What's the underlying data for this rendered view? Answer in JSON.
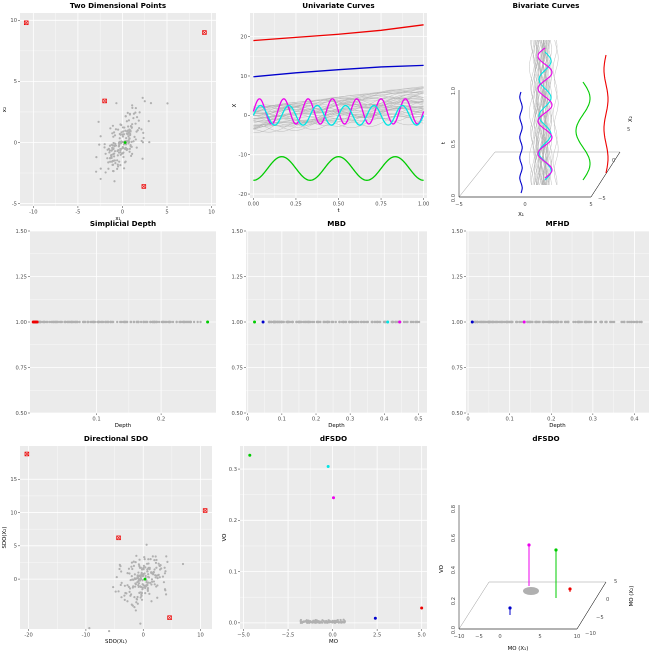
{
  "colors": {
    "panel": "#ebebeb",
    "grid": "#ffffff",
    "gray": "#b0b0b0",
    "red": "#ee0000",
    "blue": "#0000cc",
    "cyan": "#00e5e5",
    "magenta": "#ee00ee",
    "green": "#00cc00"
  },
  "chart_data": [
    {
      "type": "scatter",
      "title": "Two Dimensional Points",
      "xlabel": "x₁",
      "ylabel": "x₂",
      "xlim": [
        -11.5,
        10.5
      ],
      "ylim": [
        -5.2,
        10.6
      ],
      "xticks": [
        -10,
        -5,
        0,
        5,
        10
      ],
      "yticks": [
        -5,
        0,
        5,
        10
      ],
      "highlighted": [
        {
          "x": -10.8,
          "y": 9.8,
          "color": "red",
          "marker": "square-x"
        },
        {
          "x": 9.2,
          "y": 9.0,
          "color": "red",
          "marker": "square-x"
        },
        {
          "x": -2.0,
          "y": 3.4,
          "color": "red",
          "marker": "square-x"
        },
        {
          "x": 2.4,
          "y": -3.6,
          "color": "red",
          "marker": "square-x"
        },
        {
          "x": 0.3,
          "y": 0.0,
          "color": "green",
          "marker": "point"
        }
      ],
      "background_points": {
        "count": 200,
        "color": "gray",
        "center": [
          0,
          0
        ]
      }
    },
    {
      "type": "line",
      "title": "Univariate Curves",
      "xlabel": "t",
      "ylabel": "X",
      "xlim": [
        -0.02,
        1.02
      ],
      "ylim": [
        -21,
        26
      ],
      "xticks": [
        0.0,
        0.25,
        0.5,
        0.75,
        1.0
      ],
      "xtick_labels": [
        "0.00",
        "0.25",
        "0.50",
        "0.75",
        "1.00"
      ],
      "yticks": [
        -20,
        -10,
        0,
        10,
        20
      ],
      "series": [
        {
          "color": "red",
          "x": [
            0,
            0.25,
            0.5,
            0.75,
            1
          ],
          "y": [
            19,
            19.8,
            20.6,
            21.6,
            23
          ]
        },
        {
          "color": "blue",
          "x": [
            0,
            0.25,
            0.5,
            0.75,
            1
          ],
          "y": [
            9.8,
            10.8,
            11.6,
            12.3,
            12.7
          ]
        },
        {
          "color": "magenta",
          "shape": "sine",
          "mean": 1.0,
          "amplitude": 3.2,
          "periods": 7
        },
        {
          "color": "cyan",
          "shape": "sine",
          "mean": 0.0,
          "amplitude": 2.5,
          "periods": 6
        },
        {
          "color": "green",
          "shape": "sine",
          "mean": -13.5,
          "amplitude": 3.0,
          "periods": 3
        }
      ],
      "background_curves": {
        "count": 40,
        "color": "gray",
        "range": [
          -6,
          8
        ]
      }
    },
    {
      "type": "line3d",
      "title": "Bivariate Curves",
      "xlabel": "X₁",
      "ylabel": "X₂",
      "zlabel": "t",
      "xticks": [
        "−5",
        "0",
        "5"
      ],
      "yticks": [
        "−5",
        "0",
        "5"
      ],
      "zticks": [
        "0.0",
        "0.5",
        "1.0"
      ]
    },
    {
      "type": "scatter",
      "title": "Simplicial Depth",
      "xlabel": "Depth",
      "ylabel": "",
      "xlim": [
        -0.003,
        0.285
      ],
      "ylim": [
        0.5,
        1.5
      ],
      "xticks": [
        0.1,
        0.2
      ],
      "yticks": [
        0.5,
        0.75,
        1.0,
        1.25,
        1.5
      ],
      "ytick_labels": [
        "0.50",
        "0.75",
        "1.00",
        "1.25",
        "1.50"
      ],
      "highlighted": [
        {
          "x": 0.002,
          "color": "red"
        },
        {
          "x": 0.004,
          "color": "red"
        },
        {
          "x": 0.006,
          "color": "red"
        },
        {
          "x": 0.008,
          "color": "red"
        },
        {
          "x": 0.272,
          "color": "green"
        }
      ],
      "background_range": [
        0.01,
        0.265
      ]
    },
    {
      "type": "scatter",
      "title": "MBD",
      "xlabel": "Depth",
      "ylabel": "",
      "xlim": [
        -0.005,
        0.525
      ],
      "ylim": [
        0.5,
        1.5
      ],
      "xticks": [
        0.0,
        0.1,
        0.2,
        0.3,
        0.4,
        0.5
      ],
      "yticks": [
        0.5,
        0.75,
        1.0,
        1.25,
        1.5
      ],
      "ytick_labels": [
        "0.50",
        "0.75",
        "1.00",
        "1.25",
        "1.50"
      ],
      "highlighted": [
        {
          "x": 0.02,
          "color": "green"
        },
        {
          "x": 0.045,
          "color": "blue"
        },
        {
          "x": 0.41,
          "color": "cyan"
        },
        {
          "x": 0.445,
          "color": "magenta"
        }
      ],
      "background_range": [
        0.06,
        0.51
      ]
    },
    {
      "type": "scatter",
      "title": "MFHD",
      "xlabel": "Depth",
      "ylabel": "",
      "xlim": [
        -0.005,
        0.435
      ],
      "ylim": [
        0.5,
        1.5
      ],
      "xticks": [
        0.0,
        0.1,
        0.2,
        0.3,
        0.4
      ],
      "yticks": [
        0.5,
        0.75,
        1.0,
        1.25,
        1.5
      ],
      "ytick_labels": [
        "0.50",
        "0.75",
        "1.00",
        "1.25",
        "1.50"
      ],
      "highlighted": [
        {
          "x": 0.01,
          "color": "blue"
        },
        {
          "x": 0.135,
          "color": "magenta"
        }
      ],
      "background_range": [
        0.015,
        0.42
      ]
    },
    {
      "type": "scatter",
      "title": "Directional SDO",
      "xlabel": "SDO(X₁)",
      "ylabel": "SDO(X₂)",
      "xlim": [
        -21.5,
        12
      ],
      "ylim": [
        -7.5,
        20
      ],
      "xticks": [
        -20,
        -10,
        0,
        10
      ],
      "yticks": [
        0,
        5,
        10,
        15
      ],
      "highlighted": [
        {
          "x": -20.3,
          "y": 18.8,
          "color": "red",
          "marker": "square-x"
        },
        {
          "x": 10.8,
          "y": 10.3,
          "color": "red",
          "marker": "square-x"
        },
        {
          "x": -4.3,
          "y": 6.2,
          "color": "red",
          "marker": "square-x"
        },
        {
          "x": 4.6,
          "y": -5.8,
          "color": "red",
          "marker": "square-x"
        },
        {
          "x": 0.3,
          "y": 0.0,
          "color": "green",
          "marker": "point"
        }
      ],
      "background_points": {
        "count": 200,
        "color": "gray",
        "center": [
          0,
          0
        ]
      }
    },
    {
      "type": "scatter",
      "title": "dFSDO",
      "xlabel": "MO",
      "ylabel": "VO",
      "xlim": [
        -5.2,
        5.3
      ],
      "ylim": [
        -0.012,
        0.345
      ],
      "xticks": [
        -5.0,
        -2.5,
        0.0,
        2.5,
        5.0
      ],
      "xtick_labels": [
        "−5.0",
        "−2.5",
        "0.0",
        "2.5",
        "5.0"
      ],
      "yticks": [
        0.0,
        0.1,
        0.2,
        0.3
      ],
      "ytick_labels": [
        "0.0",
        "0.1",
        "0.2",
        "0.3"
      ],
      "highlighted": [
        {
          "x": -4.65,
          "y": 0.327,
          "color": "green"
        },
        {
          "x": -0.25,
          "y": 0.305,
          "color": "cyan"
        },
        {
          "x": 0.05,
          "y": 0.244,
          "color": "magenta"
        },
        {
          "x": 2.4,
          "y": 0.009,
          "color": "blue"
        },
        {
          "x": 5.0,
          "y": 0.029,
          "color": "red"
        }
      ],
      "background_range": [
        -1.8,
        0.7
      ]
    },
    {
      "type": "scatter3d",
      "title": "dFSDO",
      "xlabel": "MO (X₁)",
      "ylabel": "MO (X₂)",
      "zlabel": "VO",
      "xticks": [
        "−10",
        "−5",
        "0",
        "5",
        "10"
      ],
      "yticks": [
        "−10",
        "−5",
        "0",
        "5"
      ],
      "zticks": [
        "0.0",
        "0.2",
        "0.4",
        "0.6",
        "0.8"
      ]
    }
  ]
}
